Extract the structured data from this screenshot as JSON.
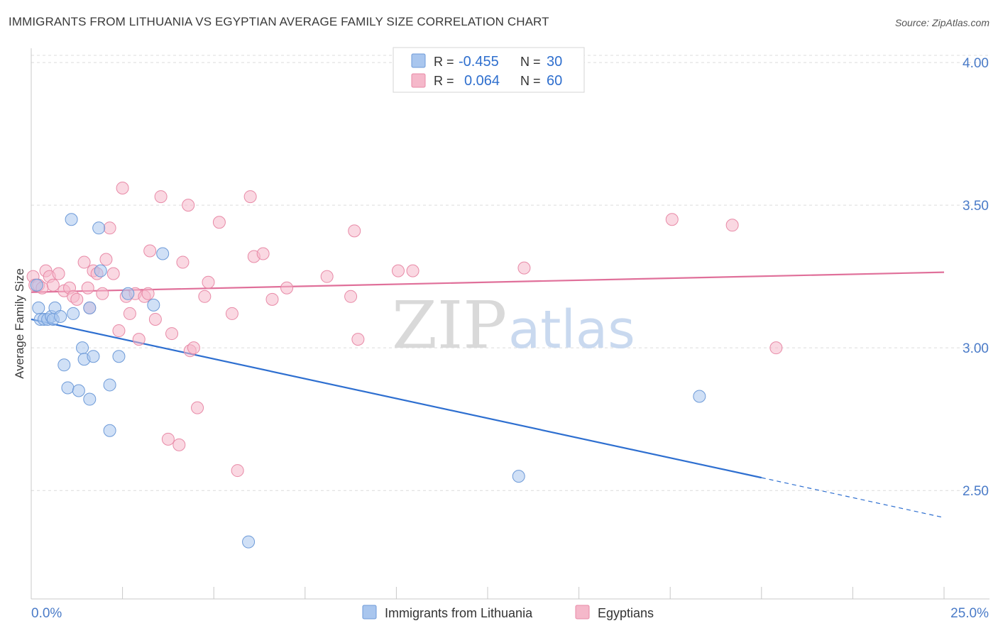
{
  "header": {
    "title": "IMMIGRANTS FROM LITHUANIA VS EGYPTIAN AVERAGE FAMILY SIZE CORRELATION CHART",
    "source": "Source: ZipAtlas.com"
  },
  "watermark": {
    "zip": "ZIP",
    "atlas": "atlas"
  },
  "stats_box": {
    "rows": [
      {
        "r_label": "R =",
        "r_value": "-0.455",
        "n_label": "N =",
        "n_value": "30",
        "color": "#a9c6ee"
      },
      {
        "r_label": "R =",
        "r_value": "0.064",
        "n_label": "N =",
        "n_value": "60",
        "color": "#f5b8ca"
      }
    ]
  },
  "colors": {
    "blue_fill": "#a9c6ee",
    "blue_stroke": "#6d9ad8",
    "blue_line": "#2e6fd0",
    "pink_fill": "#f5b8ca",
    "pink_stroke": "#e88aa7",
    "pink_line": "#e0709a",
    "tick_text": "#4a7bc8",
    "grid": "#dcdcdc"
  },
  "chart_data": {
    "type": "scatter",
    "title": "IMMIGRANTS FROM LITHUANIA VS EGYPTIAN AVERAGE FAMILY SIZE CORRELATION CHART",
    "xlabel": "",
    "ylabel": "Average Family Size",
    "xlim": [
      0,
      25
    ],
    "ylim": [
      2.12,
      4.05
    ],
    "x_tick_labels": [
      "0.0%",
      "25.0%"
    ],
    "y_ticks": [
      2.5,
      3.0,
      3.5,
      4.0
    ],
    "y_tick_labels": [
      "2.50",
      "3.00",
      "3.50",
      "4.00"
    ],
    "grid": true,
    "legend_position": "bottom-center",
    "series": [
      {
        "name": "Immigrants from Lithuania",
        "color": "#a9c6ee",
        "points": [
          [
            0.15,
            3.22
          ],
          [
            0.2,
            3.14
          ],
          [
            0.25,
            3.1
          ],
          [
            0.35,
            3.1
          ],
          [
            0.45,
            3.1
          ],
          [
            0.55,
            3.11
          ],
          [
            0.6,
            3.1
          ],
          [
            0.65,
            3.14
          ],
          [
            0.8,
            3.11
          ],
          [
            0.9,
            2.94
          ],
          [
            1.0,
            2.86
          ],
          [
            1.1,
            3.45
          ],
          [
            1.15,
            3.12
          ],
          [
            1.3,
            2.85
          ],
          [
            1.4,
            3.0
          ],
          [
            1.45,
            2.96
          ],
          [
            1.6,
            2.82
          ],
          [
            1.6,
            3.14
          ],
          [
            1.7,
            2.97
          ],
          [
            1.85,
            3.42
          ],
          [
            1.9,
            3.27
          ],
          [
            2.15,
            2.71
          ],
          [
            2.15,
            2.87
          ],
          [
            2.4,
            2.97
          ],
          [
            2.65,
            3.19
          ],
          [
            3.35,
            3.15
          ],
          [
            3.6,
            3.33
          ],
          [
            5.95,
            2.32
          ],
          [
            13.35,
            2.55
          ],
          [
            18.3,
            2.83
          ]
        ],
        "trend": {
          "x": [
            0,
            20
          ],
          "y": [
            3.1,
            2.545
          ],
          "dashed_extension_to": [
            25,
            2.405
          ]
        }
      },
      {
        "name": "Egyptians",
        "color": "#f5b8ca",
        "points": [
          [
            0.05,
            3.25
          ],
          [
            0.1,
            3.22
          ],
          [
            0.2,
            3.22
          ],
          [
            0.3,
            3.21
          ],
          [
            0.4,
            3.27
          ],
          [
            0.5,
            3.25
          ],
          [
            0.6,
            3.22
          ],
          [
            0.75,
            3.26
          ],
          [
            0.9,
            3.2
          ],
          [
            1.05,
            3.21
          ],
          [
            1.15,
            3.18
          ],
          [
            1.25,
            3.17
          ],
          [
            1.45,
            3.3
          ],
          [
            1.55,
            3.21
          ],
          [
            1.6,
            3.14
          ],
          [
            1.7,
            3.27
          ],
          [
            1.8,
            3.26
          ],
          [
            1.95,
            3.19
          ],
          [
            2.05,
            3.31
          ],
          [
            2.15,
            3.42
          ],
          [
            2.25,
            3.26
          ],
          [
            2.4,
            3.06
          ],
          [
            2.5,
            3.56
          ],
          [
            2.6,
            3.18
          ],
          [
            2.7,
            3.12
          ],
          [
            2.85,
            3.19
          ],
          [
            2.95,
            3.03
          ],
          [
            3.1,
            3.18
          ],
          [
            3.2,
            3.19
          ],
          [
            3.25,
            3.34
          ],
          [
            3.4,
            3.1
          ],
          [
            3.55,
            3.53
          ],
          [
            3.75,
            2.68
          ],
          [
            3.85,
            3.05
          ],
          [
            4.05,
            2.66
          ],
          [
            4.15,
            3.3
          ],
          [
            4.3,
            3.5
          ],
          [
            4.35,
            2.99
          ],
          [
            4.45,
            3.0
          ],
          [
            4.55,
            2.79
          ],
          [
            4.75,
            3.18
          ],
          [
            4.85,
            3.23
          ],
          [
            5.15,
            3.44
          ],
          [
            5.5,
            3.12
          ],
          [
            5.65,
            2.57
          ],
          [
            6.0,
            3.53
          ],
          [
            6.1,
            3.32
          ],
          [
            6.35,
            3.33
          ],
          [
            6.6,
            3.17
          ],
          [
            7.0,
            3.21
          ],
          [
            8.1,
            3.25
          ],
          [
            8.75,
            3.18
          ],
          [
            8.85,
            3.41
          ],
          [
            8.95,
            3.03
          ],
          [
            10.05,
            3.27
          ],
          [
            10.45,
            3.27
          ],
          [
            13.5,
            3.28
          ],
          [
            17.55,
            3.45
          ],
          [
            19.2,
            3.43
          ],
          [
            20.4,
            3.0
          ]
        ],
        "trend": {
          "x": [
            0,
            25
          ],
          "y": [
            3.195,
            3.265
          ]
        }
      }
    ]
  }
}
